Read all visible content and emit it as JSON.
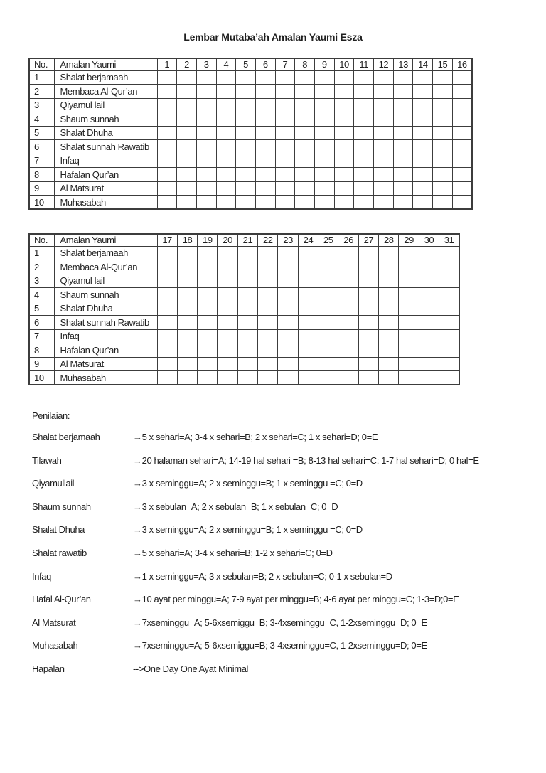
{
  "page": {
    "title": "Lembar Mutaba’ah Amalan Yaumi Esza"
  },
  "tables": [
    {
      "name": "days-1-16",
      "headers": {
        "no": "No.",
        "activity": "Amalan Yaumi"
      },
      "days": [
        "1",
        "2",
        "3",
        "4",
        "5",
        "6",
        "7",
        "8",
        "9",
        "10",
        "11",
        "12",
        "13",
        "14",
        "15",
        "16"
      ],
      "rows": [
        {
          "no": "1",
          "activity": "Shalat berjamaah"
        },
        {
          "no": "2",
          "activity": "Membaca Al-Qur’an"
        },
        {
          "no": "3",
          "activity": "Qiyamul lail"
        },
        {
          "no": "4",
          "activity": "Shaum sunnah"
        },
        {
          "no": "5",
          "activity": "Shalat Dhuha"
        },
        {
          "no": "6",
          "activity": "Shalat sunnah Rawatib"
        },
        {
          "no": "7",
          "activity": "Infaq"
        },
        {
          "no": "8",
          "activity": "Hafalan Qur’an"
        },
        {
          "no": "9",
          "activity": "Al Matsurat"
        },
        {
          "no": "10",
          "activity": "Muhasabah"
        }
      ]
    },
    {
      "name": "days-17-31",
      "headers": {
        "no": "No.",
        "activity": "Amalan Yaumi"
      },
      "days": [
        "17",
        "18",
        "19",
        "20",
        "21",
        "22",
        "23",
        "24",
        "25",
        "26",
        "27",
        "28",
        "29",
        "30",
        "31"
      ],
      "rows": [
        {
          "no": "1",
          "activity": "Shalat berjamaah"
        },
        {
          "no": "2",
          "activity": "Membaca Al-Qur’an"
        },
        {
          "no": "3",
          "activity": "Qiyamul lail"
        },
        {
          "no": "4",
          "activity": "Shaum sunnah"
        },
        {
          "no": "5",
          "activity": "Shalat Dhuha"
        },
        {
          "no": "6",
          "activity": "Shalat sunnah Rawatib"
        },
        {
          "no": "7",
          "activity": "Infaq"
        },
        {
          "no": "8",
          "activity": "Hafalan Qur’an"
        },
        {
          "no": "9",
          "activity": "Al Matsurat"
        },
        {
          "no": "10",
          "activity": "Muhasabah"
        }
      ]
    }
  ],
  "penilaian": {
    "heading": "Penilaian:",
    "items": [
      {
        "label": "Shalat berjamaah",
        "arrow": "→",
        "text": "5 x sehari=A; 3-4 x sehari=B; 2 x sehari=C; 1 x sehari=D; 0=E"
      },
      {
        "label": "Tilawah",
        "arrow": "→",
        "text": "20 halaman sehari=A; 14-19 hal sehari =B; 8-13 hal sehari=C; 1-7 hal sehari=D; 0 hal=E"
      },
      {
        "label": "Qiyamullail",
        "arrow": "→",
        "text": "3 x seminggu=A; 2 x seminggu=B; 1 x seminggu =C; 0=D"
      },
      {
        "label": "Shaum sunnah",
        "arrow": "→",
        "text": "3 x sebulan=A; 2 x sebulan=B; 1 x sebulan=C; 0=D"
      },
      {
        "label": "Shalat Dhuha",
        "arrow": "→",
        "text": "3 x seminggu=A; 2 x seminggu=B; 1 x seminggu =C; 0=D"
      },
      {
        "label": "Shalat rawatib",
        "arrow": "→",
        "text": "5 x sehari=A; 3-4 x sehari=B; 1-2 x sehari=C; 0=D"
      },
      {
        "label": "Infaq",
        "arrow": "→",
        "text": "1 x seminggu=A; 3 x sebulan=B; 2 x sebulan=C; 0-1 x sebulan=D"
      },
      {
        "label": "Hafal Al-Qur’an",
        "arrow": "→",
        "text": "10 ayat per minggu=A; 7-9 ayat per minggu=B; 4-6 ayat per minggu=C; 1-3=D;0=E"
      },
      {
        "label": "Al Matsurat",
        "arrow": "→",
        "text": "7xseminggu=A; 5-6xsemiggu=B; 3-4xseminggu=C, 1-2xseminggu=D; 0=E"
      },
      {
        "label": "Muhasabah",
        "arrow": "→",
        "text": "7xseminggu=A; 5-6xsemiggu=B; 3-4xseminggu=C, 1-2xseminggu=D; 0=E"
      },
      {
        "label": "Hapalan",
        "arrow": "-->",
        "text": "One Day One Ayat Minimal"
      }
    ]
  }
}
